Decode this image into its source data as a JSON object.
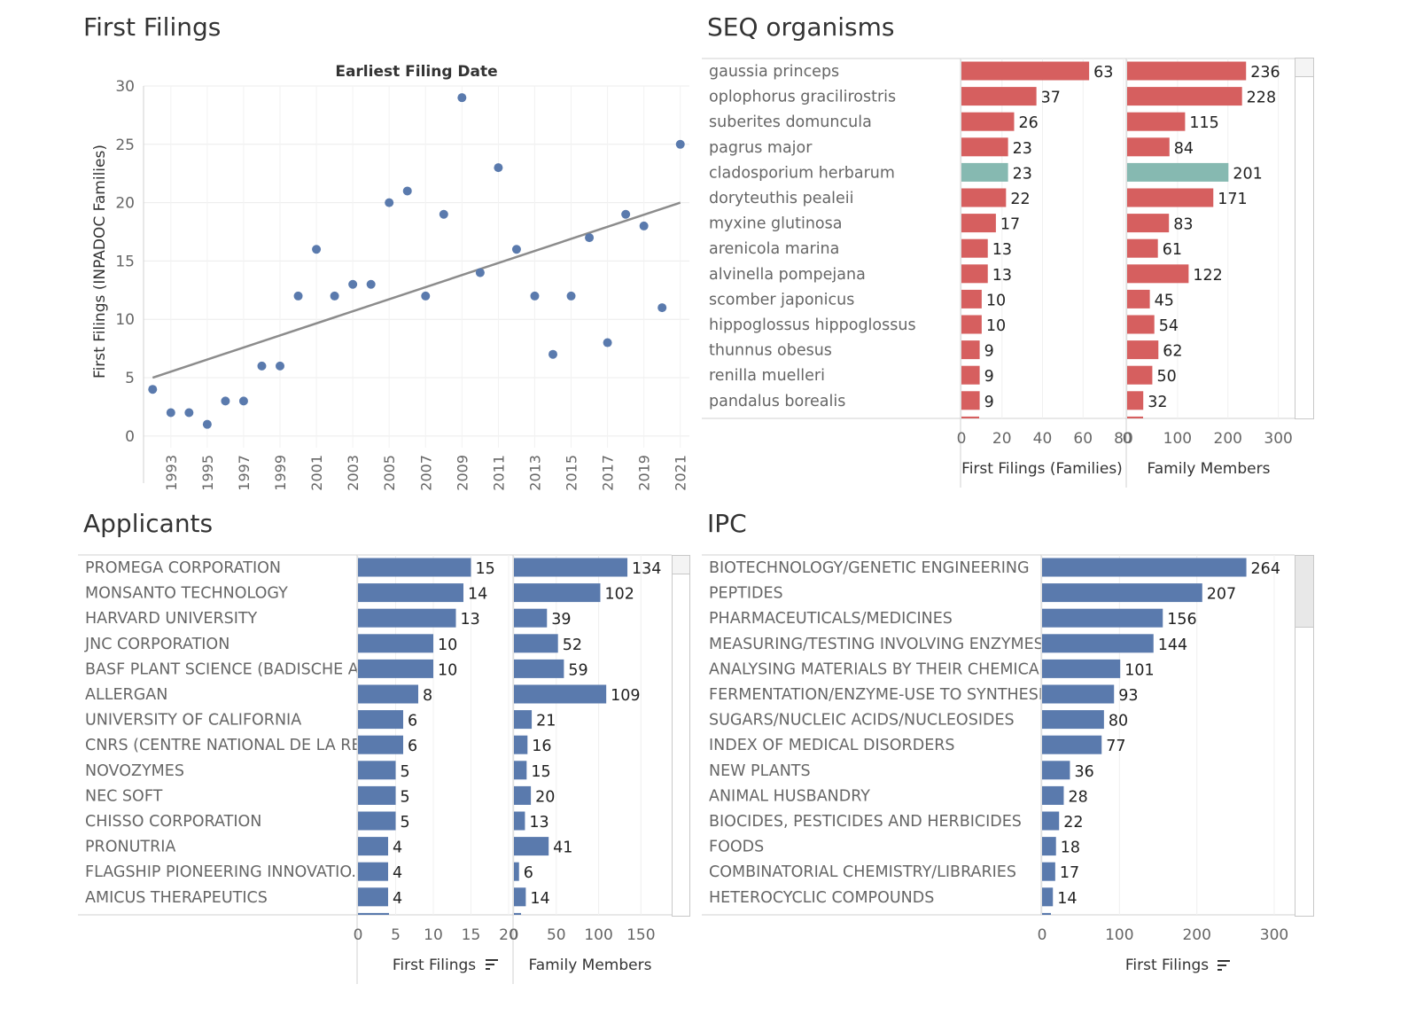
{
  "titles": {
    "first_filings": "First Filings",
    "seq": "SEQ organisms",
    "applicants": "Applicants",
    "ipc": "IPC"
  },
  "colors": {
    "blue": "#5a7aad",
    "red": "#d65f5f",
    "teal": "#86b9b1",
    "trend": "#8c8c8c"
  },
  "icons": [
    "sort-descending-icon"
  ],
  "chart_data": [
    {
      "type": "scatter",
      "title": "Earliest Filing Date",
      "ylabel": "First Filings (INPADOC Families)",
      "xlabel": "",
      "x_tick_labels": [
        "1993",
        "1995",
        "1997",
        "1999",
        "2001",
        "2003",
        "2005",
        "2007",
        "2009",
        "2011",
        "2013",
        "2015",
        "2017",
        "2019",
        "2021"
      ],
      "y_ticks": [
        0,
        5,
        10,
        15,
        20,
        25,
        30
      ],
      "xlim": [
        1991.5,
        2021.5
      ],
      "ylim": [
        -1,
        30
      ],
      "grid": true,
      "x": [
        1992,
        1993,
        1994,
        1995,
        1996,
        1997,
        1998,
        1999,
        2000,
        2001,
        2002,
        2003,
        2004,
        2005,
        2006,
        2007,
        2008,
        2009,
        2010,
        2011,
        2012,
        2013,
        2014,
        2015,
        2016,
        2017,
        2018,
        2019,
        2020,
        2021
      ],
      "y": [
        4,
        2,
        2,
        1,
        3,
        3,
        6,
        6,
        12,
        16,
        12,
        13,
        13,
        20,
        21,
        12,
        19,
        29,
        14,
        23,
        16,
        12,
        7,
        12,
        17,
        8,
        19,
        18,
        11,
        25
      ],
      "trendline": {
        "x": [
          1992,
          2021
        ],
        "y": [
          5,
          20
        ]
      }
    },
    {
      "type": "bar",
      "orientation": "horizontal",
      "categories": [
        "gaussia princeps",
        "oplophorus gracilirostris",
        "suberites domuncula",
        "pagrus major",
        "cladosporium herbarum",
        "doryteuthis pealeii",
        "myxine glutinosa",
        "arenicola marina",
        "alvinella pompejana",
        "scomber japonicus",
        "hippoglossus hippoglossus",
        "thunnus obesus",
        "renilla muelleri",
        "pandalus borealis"
      ],
      "highlighted_category": "cladosporium herbarum",
      "series": [
        {
          "name": "First Filings (Families)",
          "values": [
            63,
            37,
            26,
            23,
            23,
            22,
            17,
            13,
            13,
            10,
            10,
            9,
            9,
            9
          ],
          "ticks": [
            "0",
            "20",
            "40",
            "60",
            "80"
          ],
          "xlim": [
            0,
            80
          ]
        },
        {
          "name": "Family Members",
          "values": [
            236,
            228,
            115,
            84,
            201,
            171,
            83,
            61,
            122,
            45,
            54,
            62,
            50,
            32
          ],
          "ticks": [
            "0",
            "100",
            "200",
            "300"
          ],
          "xlim": [
            0,
            320
          ]
        }
      ]
    },
    {
      "type": "bar",
      "orientation": "horizontal",
      "categories": [
        "PROMEGA CORPORATION",
        "MONSANTO TECHNOLOGY",
        "HARVARD UNIVERSITY",
        "JNC CORPORATION",
        "BASF PLANT SCIENCE (BADISCHE AN..",
        "ALLERGAN",
        "UNIVERSITY OF CALIFORNIA",
        "CNRS (CENTRE NATIONAL DE LA REC..",
        "NOVOZYMES",
        "NEC SOFT",
        "CHISSO CORPORATION",
        "PRONUTRIA",
        "FLAGSHIP PIONEERING INNOVATIO..",
        "AMICUS THERAPEUTICS"
      ],
      "series": [
        {
          "name": "First Filings",
          "values": [
            15,
            14,
            13,
            10,
            10,
            8,
            6,
            6,
            5,
            5,
            5,
            4,
            4,
            4
          ],
          "ticks": [
            "0",
            "5",
            "10",
            "15",
            "20"
          ],
          "xlim": [
            0,
            20
          ]
        },
        {
          "name": "Family Members",
          "values": [
            134,
            102,
            39,
            52,
            59,
            109,
            21,
            16,
            15,
            20,
            13,
            41,
            6,
            14
          ],
          "ticks": [
            "0",
            "50",
            "100",
            "150"
          ],
          "xlim": [
            0,
            180
          ]
        }
      ]
    },
    {
      "type": "bar",
      "orientation": "horizontal",
      "categories": [
        "BIOTECHNOLOGY/GENETIC ENGINEERING",
        "PEPTIDES",
        "PHARMACEUTICALS/MEDICINES",
        "MEASURING/TESTING INVOLVING ENZYMES/..",
        "ANALYSING MATERIALS BY THEIR CHEMICAL ..",
        "FERMENTATION/ENZYME-USE TO SYNTHESI..",
        "SUGARS/NUCLEIC ACIDS/NUCLEOSIDES",
        "INDEX OF MEDICAL DISORDERS",
        "NEW PLANTS",
        "ANIMAL HUSBANDRY",
        "BIOCIDES, PESTICIDES AND HERBICIDES",
        "FOODS",
        "COMBINATORIAL CHEMISTRY/LIBRARIES",
        "HETEROCYCLIC COMPOUNDS"
      ],
      "series": [
        {
          "name": "First Filings",
          "values": [
            264,
            207,
            156,
            144,
            101,
            93,
            80,
            77,
            36,
            28,
            22,
            18,
            17,
            14
          ],
          "ticks": [
            "0",
            "100",
            "200",
            "300"
          ],
          "xlim": [
            0,
            300
          ]
        }
      ]
    }
  ]
}
